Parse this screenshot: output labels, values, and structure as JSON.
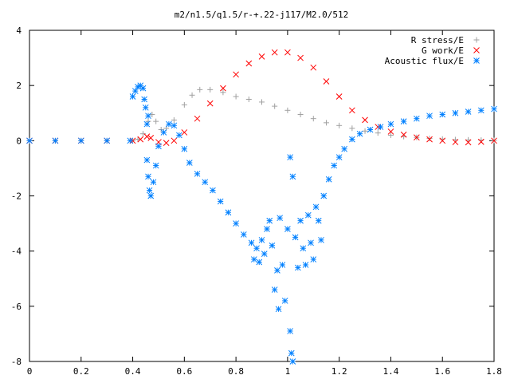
{
  "chart_data": {
    "type": "scatter",
    "title": "m2/n1.5/q1.5/r-+.22-j117/M2.0/512",
    "xlabel": "",
    "ylabel": "",
    "xlim": [
      0,
      1.8
    ],
    "ylim": [
      -8,
      4
    ],
    "xticks": [
      0,
      0.2,
      0.4,
      0.6,
      0.8,
      1,
      1.2,
      1.4,
      1.6,
      1.8
    ],
    "xtick_labels": [
      "0",
      "0.2",
      "0.4",
      "0.6",
      "0.8",
      "1",
      "1.2",
      "1.4",
      "1.6",
      "1.8"
    ],
    "yticks": [
      -8,
      -6,
      -4,
      -2,
      0,
      2,
      4
    ],
    "ytick_labels": [
      "-8",
      "-6",
      "-4",
      "-2",
      "0",
      "2",
      "4"
    ],
    "grid": false,
    "legend_position": "top-right",
    "series": [
      {
        "name": "R stress/E",
        "marker": "plus",
        "color": "#a0a0a0",
        "points": [
          [
            0.0,
            0.0
          ],
          [
            0.1,
            0.0
          ],
          [
            0.2,
            0.0
          ],
          [
            0.3,
            0.0
          ],
          [
            0.4,
            0.0
          ],
          [
            0.42,
            0.05
          ],
          [
            0.44,
            0.25
          ],
          [
            0.46,
            0.7
          ],
          [
            0.475,
            0.95
          ],
          [
            0.49,
            0.7
          ],
          [
            0.51,
            0.4
          ],
          [
            0.53,
            0.45
          ],
          [
            0.56,
            0.75
          ],
          [
            0.6,
            1.3
          ],
          [
            0.63,
            1.65
          ],
          [
            0.66,
            1.85
          ],
          [
            0.7,
            1.85
          ],
          [
            0.75,
            1.75
          ],
          [
            0.8,
            1.6
          ],
          [
            0.85,
            1.5
          ],
          [
            0.9,
            1.4
          ],
          [
            0.95,
            1.25
          ],
          [
            1.0,
            1.1
          ],
          [
            1.05,
            0.95
          ],
          [
            1.1,
            0.8
          ],
          [
            1.15,
            0.65
          ],
          [
            1.2,
            0.55
          ],
          [
            1.25,
            0.45
          ],
          [
            1.3,
            0.35
          ],
          [
            1.35,
            0.28
          ],
          [
            1.4,
            0.2
          ],
          [
            1.45,
            0.15
          ],
          [
            1.5,
            0.12
          ],
          [
            1.55,
            0.08
          ],
          [
            1.6,
            0.06
          ],
          [
            1.65,
            0.04
          ],
          [
            1.7,
            0.03
          ],
          [
            1.75,
            0.02
          ],
          [
            1.8,
            0.01
          ]
        ]
      },
      {
        "name": "G work/E",
        "marker": "cross",
        "color": "#ff0000",
        "points": [
          [
            0.0,
            0.0
          ],
          [
            0.1,
            0.0
          ],
          [
            0.2,
            0.0
          ],
          [
            0.3,
            0.0
          ],
          [
            0.4,
            0.0
          ],
          [
            0.43,
            0.05
          ],
          [
            0.455,
            0.15
          ],
          [
            0.47,
            0.1
          ],
          [
            0.5,
            -0.05
          ],
          [
            0.53,
            -0.08
          ],
          [
            0.56,
            0.0
          ],
          [
            0.6,
            0.3
          ],
          [
            0.65,
            0.8
          ],
          [
            0.7,
            1.35
          ],
          [
            0.75,
            1.9
          ],
          [
            0.8,
            2.4
          ],
          [
            0.85,
            2.8
          ],
          [
            0.9,
            3.05
          ],
          [
            0.95,
            3.2
          ],
          [
            1.0,
            3.2
          ],
          [
            1.05,
            3.0
          ],
          [
            1.1,
            2.65
          ],
          [
            1.15,
            2.15
          ],
          [
            1.2,
            1.6
          ],
          [
            1.25,
            1.1
          ],
          [
            1.3,
            0.75
          ],
          [
            1.35,
            0.5
          ],
          [
            1.4,
            0.33
          ],
          [
            1.45,
            0.22
          ],
          [
            1.5,
            0.12
          ],
          [
            1.55,
            0.05
          ],
          [
            1.6,
            0.0
          ],
          [
            1.65,
            -0.05
          ],
          [
            1.7,
            -0.06
          ],
          [
            1.75,
            -0.04
          ],
          [
            1.8,
            0.0
          ]
        ]
      },
      {
        "name": "Acoustic flux/E",
        "marker": "star",
        "color": "#0080ff",
        "points": [
          [
            0.0,
            0.0
          ],
          [
            0.1,
            0.0
          ],
          [
            0.2,
            0.0
          ],
          [
            0.3,
            0.0
          ],
          [
            0.39,
            0.0
          ],
          [
            0.4,
            1.6
          ],
          [
            0.41,
            1.8
          ],
          [
            0.42,
            1.95
          ],
          [
            0.43,
            2.0
          ],
          [
            0.44,
            1.9
          ],
          [
            0.445,
            1.5
          ],
          [
            0.45,
            1.2
          ],
          [
            0.455,
            0.6
          ],
          [
            0.46,
            0.9
          ],
          [
            0.455,
            -0.7
          ],
          [
            0.46,
            -1.3
          ],
          [
            0.465,
            -1.8
          ],
          [
            0.47,
            -2.0
          ],
          [
            0.48,
            -1.5
          ],
          [
            0.49,
            -0.9
          ],
          [
            0.5,
            -0.2
          ],
          [
            0.52,
            0.3
          ],
          [
            0.54,
            0.6
          ],
          [
            0.56,
            0.55
          ],
          [
            0.58,
            0.2
          ],
          [
            0.6,
            -0.3
          ],
          [
            0.62,
            -0.8
          ],
          [
            0.65,
            -1.2
          ],
          [
            0.68,
            -1.5
          ],
          [
            0.71,
            -1.8
          ],
          [
            0.74,
            -2.2
          ],
          [
            0.77,
            -2.6
          ],
          [
            0.8,
            -3.0
          ],
          [
            0.83,
            -3.4
          ],
          [
            0.86,
            -3.7
          ],
          [
            0.87,
            -4.3
          ],
          [
            0.88,
            -3.9
          ],
          [
            0.89,
            -4.4
          ],
          [
            0.9,
            -3.6
          ],
          [
            0.91,
            -4.1
          ],
          [
            0.92,
            -3.2
          ],
          [
            0.93,
            -2.9
          ],
          [
            0.94,
            -3.8
          ],
          [
            0.95,
            -5.4
          ],
          [
            0.96,
            -4.7
          ],
          [
            0.965,
            -6.1
          ],
          [
            0.97,
            -2.8
          ],
          [
            0.98,
            -4.5
          ],
          [
            0.99,
            -5.8
          ],
          [
            1.0,
            -3.2
          ],
          [
            1.01,
            -6.9
          ],
          [
            1.015,
            -7.7
          ],
          [
            1.02,
            -8.0
          ],
          [
            1.01,
            -0.6
          ],
          [
            1.02,
            -1.3
          ],
          [
            1.03,
            -3.5
          ],
          [
            1.04,
            -4.6
          ],
          [
            1.05,
            -2.9
          ],
          [
            1.06,
            -3.9
          ],
          [
            1.07,
            -4.5
          ],
          [
            1.08,
            -2.7
          ],
          [
            1.09,
            -3.7
          ],
          [
            1.1,
            -4.3
          ],
          [
            1.11,
            -2.4
          ],
          [
            1.12,
            -2.9
          ],
          [
            1.13,
            -3.6
          ],
          [
            1.14,
            -2.0
          ],
          [
            1.16,
            -1.4
          ],
          [
            1.18,
            -0.9
          ],
          [
            1.2,
            -0.6
          ],
          [
            1.22,
            -0.3
          ],
          [
            1.25,
            0.05
          ],
          [
            1.28,
            0.25
          ],
          [
            1.32,
            0.4
          ],
          [
            1.36,
            0.5
          ],
          [
            1.4,
            0.6
          ],
          [
            1.45,
            0.7
          ],
          [
            1.5,
            0.8
          ],
          [
            1.55,
            0.9
          ],
          [
            1.6,
            0.95
          ],
          [
            1.65,
            1.0
          ],
          [
            1.7,
            1.05
          ],
          [
            1.75,
            1.1
          ],
          [
            1.8,
            1.15
          ]
        ]
      }
    ]
  }
}
